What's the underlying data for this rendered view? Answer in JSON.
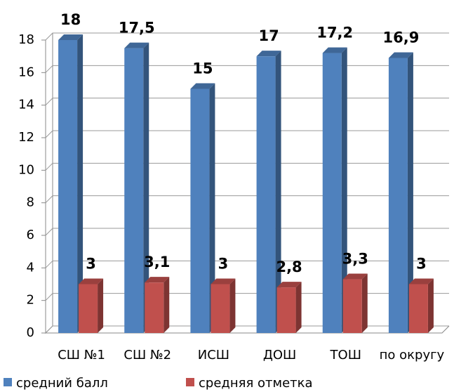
{
  "chart_data": {
    "type": "bar",
    "categories": [
      "СШ №1",
      "СШ №2",
      "ИСШ",
      "ДОШ",
      "ТОШ",
      "по округу"
    ],
    "series": [
      {
        "name": "средний балл",
        "color": "#4f81bd",
        "values": [
          18,
          17.5,
          15,
          17,
          17.2,
          16.9
        ],
        "value_labels": [
          "18",
          "17,5",
          "15",
          "17",
          "17,2",
          "16,9"
        ]
      },
      {
        "name": "средняя отметка",
        "color": "#c0504d",
        "values": [
          3,
          3.1,
          3,
          2.8,
          3.3,
          3
        ],
        "value_labels": [
          "3",
          "3,1",
          "3",
          "2,8",
          "3,3",
          "3"
        ]
      }
    ],
    "ylim": [
      0,
      18
    ],
    "yticks": [
      0,
      2,
      4,
      6,
      8,
      10,
      12,
      14,
      16,
      18
    ],
    "grid": true
  }
}
